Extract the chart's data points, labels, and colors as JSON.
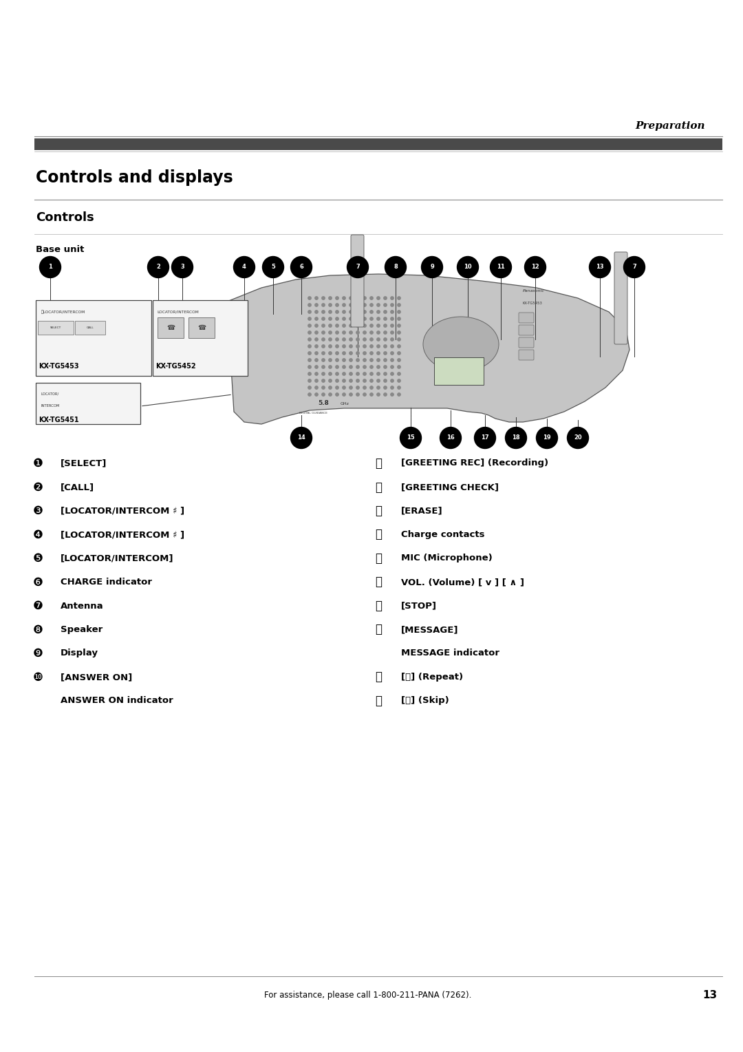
{
  "title_italic": "Preparation",
  "main_title": "Controls and displays",
  "section_title": "Controls",
  "subsection": "Base unit",
  "bg_color": "#ffffff",
  "text_color": "#000000",
  "left_items": [
    {
      "num": "❶",
      "text": "[SELECT]",
      "sub": false
    },
    {
      "num": "❷",
      "text": "[CALL]",
      "sub": false
    },
    {
      "num": "❸",
      "text": "[LOCATOR/INTERCOM ’ ]",
      "sub": false
    },
    {
      "num": "❹",
      "text": "[LOCATOR/INTERCOM ’ ]",
      "sub": false
    },
    {
      "num": "❺",
      "text": "[LOCATOR/INTERCOM]",
      "sub": false
    },
    {
      "num": "❻",
      "text": "CHARGE indicator",
      "sub": false
    },
    {
      "num": "❼",
      "text": "Antenna",
      "sub": false
    },
    {
      "num": "❽",
      "text": "Speaker",
      "sub": false
    },
    {
      "num": "❾",
      "text": "Display",
      "sub": false
    },
    {
      "num": "❿",
      "text": "[ANSWER ON]",
      "sub": false
    },
    {
      "num": "",
      "text": "ANSWER ON indicator",
      "sub": true
    }
  ],
  "right_items": [
    {
      "num": "Ⓐ",
      "text": "[GREETING REC] (Recording)",
      "sub": false
    },
    {
      "num": "Ⓑ",
      "text": "[GREETING CHECK]",
      "sub": false
    },
    {
      "num": "Ⓒ",
      "text": "[ERASE]",
      "sub": false
    },
    {
      "num": "Ⓓ",
      "text": "Charge contacts",
      "sub": false
    },
    {
      "num": "Ⓔ",
      "text": "MIC (Microphone)",
      "sub": false
    },
    {
      "num": "Ⓕ",
      "text": "VOL. (Volume) [ v ] [ ∧ ]",
      "sub": false
    },
    {
      "num": "Ⓖ",
      "text": "[STOP]",
      "sub": false
    },
    {
      "num": "Ⓗ",
      "text": "[MESSAGE]",
      "sub": false
    },
    {
      "num": "",
      "text": "MESSAGE indicator",
      "sub": true
    },
    {
      "num": "Ⓘ",
      "text": "[⏮] (Repeat)",
      "sub": false
    },
    {
      "num": "Ⓙ",
      "text": "[⏭] (Skip)",
      "sub": false
    }
  ],
  "footer_text": "For assistance, please call 1-800-211-PANA (7262).",
  "footer_page": "13",
  "circle_color": "#000000",
  "circle_text_color": "#ffffff",
  "top_numbers": [
    "1",
    "2",
    "3",
    "4",
    "5",
    "6",
    "7",
    "8",
    "9",
    "10",
    "11",
    "12",
    "13",
    "7"
  ],
  "top_x": [
    0.73,
    2.3,
    2.65,
    3.55,
    3.97,
    4.38,
    5.2,
    5.75,
    6.28,
    6.8,
    7.28,
    7.78,
    8.72,
    9.22
  ],
  "bottom_numbers": [
    "14",
    "15",
    "16",
    "17",
    "18",
    "19",
    "20"
  ],
  "bottom_x": [
    4.38,
    5.97,
    6.55,
    7.05,
    7.5,
    7.95,
    8.4
  ]
}
